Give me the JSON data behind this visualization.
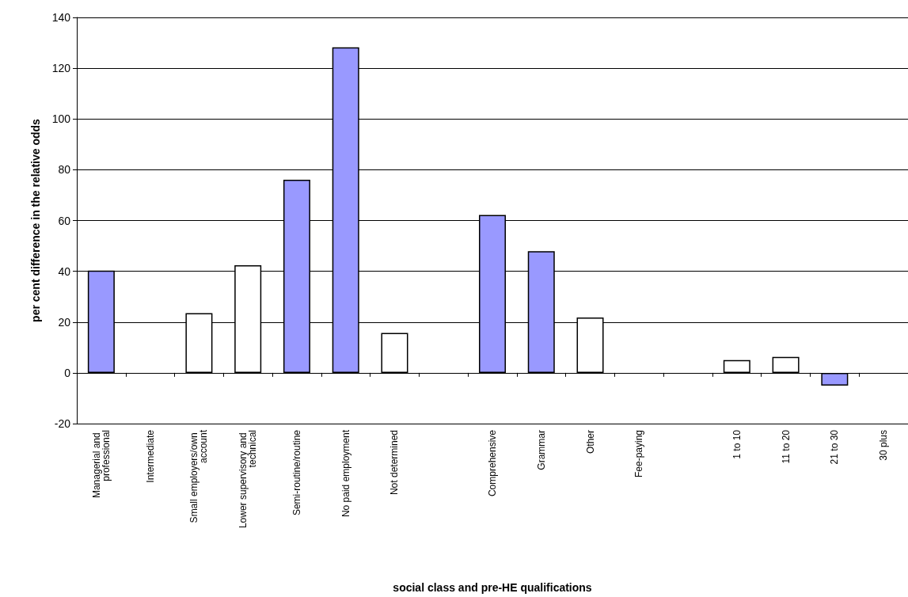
{
  "chart_data": {
    "type": "bar",
    "xlabel": "social class and pre-HE qualifications",
    "ylabel": "per cent difference in the relative odds",
    "categories": [
      "Managerial and professional",
      "Intermediate",
      "Small employers/own account",
      "Lower supervisory and technical",
      "Semi-routine/routine",
      "No paid employment",
      "Not determined",
      null,
      "Comprehensive",
      "Grammar",
      "Other",
      "Fee-paying",
      null,
      "1 to 10",
      "11 to 20",
      "21 to 30",
      "30 plus"
    ],
    "values": [
      40.3,
      null,
      23.5,
      42.4,
      76.1,
      128.2,
      15.7,
      null,
      62.2,
      47.9,
      21.8,
      null,
      null,
      5.0,
      6.3,
      -5.0,
      null
    ],
    "colors": [
      "#9999ff",
      "#ffffff",
      "#ffffff",
      "#ffffff",
      "#9999ff",
      "#9999ff",
      "#ffffff",
      "#ffffff",
      "#9999ff",
      "#9999ff",
      "#ffffff",
      "#ffffff",
      "#ffffff",
      "#ffffff",
      "#ffffff",
      "#9999ff",
      "#ffffff"
    ],
    "ylim": [
      -20,
      140
    ],
    "yticks": [
      -20,
      0,
      20,
      40,
      60,
      80,
      100,
      120,
      140
    ],
    "grid": "y"
  }
}
